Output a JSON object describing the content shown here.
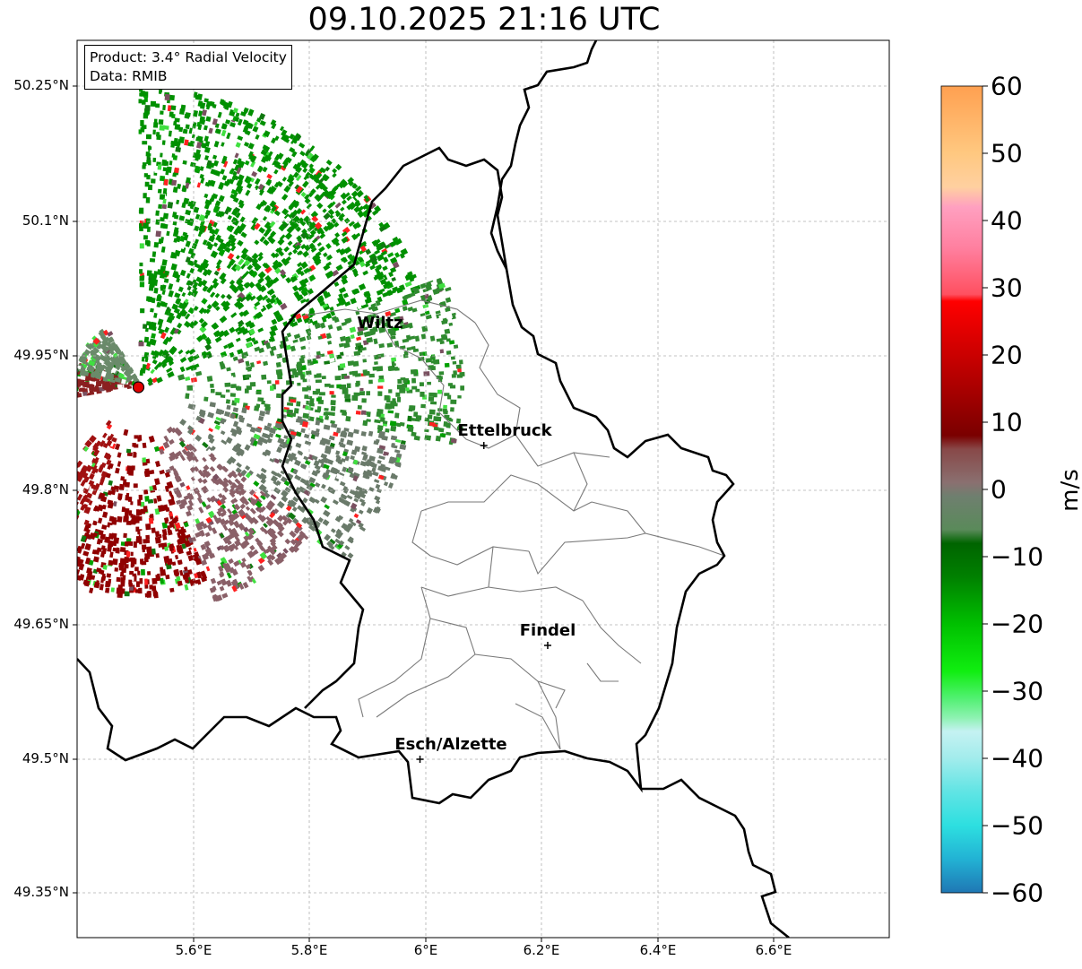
{
  "title": "09.10.2025 21:16 UTC",
  "info": {
    "product": "Product: 3.4° Radial Velocity",
    "source": "Data: RMIB"
  },
  "lat_ticks": [
    "50.25°N",
    "50.1°N",
    "49.95°N",
    "49.8°N",
    "49.65°N",
    "49.5°N",
    "49.35°N"
  ],
  "lon_ticks": [
    "5.6°E",
    "5.8°E",
    "6°E",
    "6.2°E",
    "6.4°E",
    "6.6°E"
  ],
  "cities": [
    {
      "name": "Wiltz",
      "lon": 5.93,
      "lat": 49.966
    },
    {
      "name": "Ettelbruck",
      "lon": 6.1,
      "lat": 49.85
    },
    {
      "name": "Findel",
      "lon": 6.21,
      "lat": 49.627
    },
    {
      "name": "Esch/Alzette",
      "lon": 5.99,
      "lat": 49.5
    }
  ],
  "radar_site": {
    "lon": 5.505,
    "lat": 49.915
  },
  "colorbar": {
    "unit": "m/s",
    "ticks": [
      "60",
      "50",
      "40",
      "30",
      "20",
      "10",
      "0",
      "−10",
      "−20",
      "−30",
      "−40",
      "−50",
      "−60"
    ],
    "min": -60,
    "max": 60,
    "stops": [
      {
        "v": -60,
        "c": "#1f77b4"
      },
      {
        "v": -55,
        "c": "#22b2d4"
      },
      {
        "v": -50,
        "c": "#2ddfe0"
      },
      {
        "v": -45,
        "c": "#60e4e4"
      },
      {
        "v": -40,
        "c": "#a2ecec"
      },
      {
        "v": -36,
        "c": "#c5f2f2"
      },
      {
        "v": -34,
        "c": "#8ef2b2"
      },
      {
        "v": -31,
        "c": "#50f070"
      },
      {
        "v": -27,
        "c": "#10ee10"
      },
      {
        "v": -20,
        "c": "#00c000"
      },
      {
        "v": -13,
        "c": "#008000"
      },
      {
        "v": -8,
        "c": "#006400"
      },
      {
        "v": -6,
        "c": "#5a8a5a"
      },
      {
        "v": -1,
        "c": "#6f7f6f"
      },
      {
        "v": 1,
        "c": "#8a7070"
      },
      {
        "v": 6,
        "c": "#884848"
      },
      {
        "v": 8,
        "c": "#7a0000"
      },
      {
        "v": 16,
        "c": "#b00000"
      },
      {
        "v": 28,
        "c": "#ff0000"
      },
      {
        "v": 29,
        "c": "#ff5060"
      },
      {
        "v": 36,
        "c": "#ff80a0"
      },
      {
        "v": 42,
        "c": "#ffa0c0"
      },
      {
        "v": 45,
        "c": "#ffd0a0"
      },
      {
        "v": 50,
        "c": "#ffc880"
      },
      {
        "v": 60,
        "c": "#ffa050"
      }
    ]
  },
  "echo_sectors": [
    {
      "a0": -90,
      "a1": -20,
      "r0": 0,
      "r1": 330,
      "c": "#009000"
    },
    {
      "a0": -20,
      "a1": 10,
      "r0": 40,
      "r1": 360,
      "c": "#2f8a2f"
    },
    {
      "a0": 10,
      "a1": 40,
      "r0": 40,
      "r1": 300,
      "c": "#6a7a6a"
    },
    {
      "a0": 40,
      "a1": 70,
      "r0": 40,
      "r1": 250,
      "c": "#8a6068"
    },
    {
      "a0": 70,
      "a1": 110,
      "r0": 40,
      "r1": 230,
      "c": "#900000"
    },
    {
      "a0": 110,
      "a1": 130,
      "r0": 40,
      "r1": 160,
      "c": "#a01010"
    },
    {
      "a0": 170,
      "a1": 200,
      "r0": 0,
      "r1": 70,
      "c": "#8a2020"
    },
    {
      "a0": -170,
      "a1": -120,
      "r0": 0,
      "r1": 70,
      "c": "#6a8a6a"
    }
  ]
}
